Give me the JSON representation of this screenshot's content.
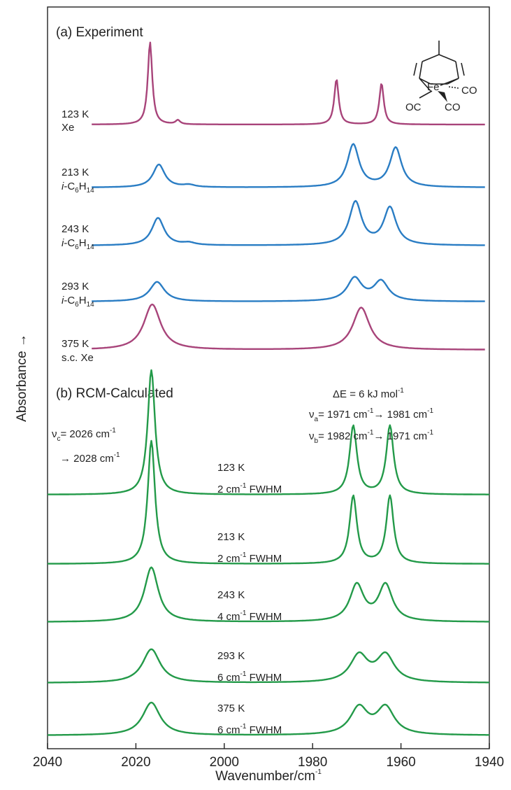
{
  "chart_data": {
    "type": "line",
    "xlabel": "Wavenumber/cm-1",
    "ylabel": "Absorbance →",
    "xlim": [
      2040,
      1940
    ],
    "x_ticks": [
      2040,
      2020,
      2000,
      1980,
      1960,
      1940
    ],
    "x_reversed": true,
    "colors": {
      "xe": "#a8447a",
      "hexane": "#2a7dc4",
      "calc": "#239a49"
    },
    "panels": [
      {
        "label": "(a) Experiment",
        "series": [
          {
            "temperature": "123 K",
            "medium": "Xe",
            "color_key": "xe",
            "width": 0.6,
            "peaks": [
              {
                "center": 2016.8,
                "height": 1.0
              },
              {
                "center": 2010.5,
                "height": 0.05
              },
              {
                "center": 1974.6,
                "height": 0.55
              },
              {
                "center": 1964.4,
                "height": 0.5
              }
            ]
          },
          {
            "temperature": "213 K",
            "medium": "i-C6H14",
            "color_key": "hexane",
            "width": 1.6,
            "peaks": [
              {
                "center": 2014.8,
                "height": 0.42
              },
              {
                "center": 2008.0,
                "height": 0.04
              },
              {
                "center": 1970.8,
                "height": 0.78
              },
              {
                "center": 1961.2,
                "height": 0.72
              }
            ]
          },
          {
            "temperature": "243 K",
            "medium": "i-C6H14",
            "color_key": "hexane",
            "width": 1.7,
            "peaks": [
              {
                "center": 2015.0,
                "height": 0.48
              },
              {
                "center": 2008.0,
                "height": 0.04
              },
              {
                "center": 1970.3,
                "height": 0.75
              },
              {
                "center": 1962.5,
                "height": 0.65
              }
            ]
          },
          {
            "temperature": "293 K",
            "medium": "i-C6H14",
            "color_key": "hexane",
            "width": 2.0,
            "peaks": [
              {
                "center": 2015.2,
                "height": 0.36
              },
              {
                "center": 1970.5,
                "height": 0.42
              },
              {
                "center": 1964.5,
                "height": 0.36
              }
            ]
          },
          {
            "temperature": "375 K",
            "medium": "s.c. Xe",
            "color_key": "xe",
            "width": 2.3,
            "peaks": [
              {
                "center": 2016.3,
                "height": 0.72
              },
              {
                "center": 1969.0,
                "height": 0.67
              }
            ]
          }
        ]
      },
      {
        "label": "(b) RCM-Calculated",
        "annotations": {
          "energy": "ΔE = 6 kJ mol-1",
          "nu_a": "νa= 1971 cm-1→ 1981 cm-1",
          "nu_b": "νb= 1982 cm-1→ 1971 cm-1",
          "nu_c_1": "νc= 2026 cm-1",
          "nu_c_2": "→ 2028 cm-1"
        },
        "series": [
          {
            "temperature": "123 K",
            "fwhm": "2 cm-1 FWHM",
            "color_key": "calc",
            "width": 1.0,
            "peaks": [
              {
                "center": 2016.5,
                "height": 1.0
              },
              {
                "center": 1970.8,
                "height": 0.55
              },
              {
                "center": 1962.5,
                "height": 0.55
              }
            ]
          },
          {
            "temperature": "213 K",
            "fwhm": "2 cm-1 FWHM",
            "color_key": "calc",
            "width": 1.0,
            "peaks": [
              {
                "center": 2016.5,
                "height": 1.0
              },
              {
                "center": 1970.8,
                "height": 0.55
              },
              {
                "center": 1962.5,
                "height": 0.55
              }
            ]
          },
          {
            "temperature": "243 K",
            "fwhm": "4 cm-1 FWHM",
            "color_key": "calc",
            "width": 1.9,
            "peaks": [
              {
                "center": 2016.5,
                "height": 0.6
              },
              {
                "center": 1970.0,
                "height": 0.4
              },
              {
                "center": 1963.5,
                "height": 0.4
              }
            ]
          },
          {
            "temperature": "293 K",
            "fwhm": "6 cm-1 FWHM",
            "color_key": "calc",
            "width": 2.4,
            "peaks": [
              {
                "center": 2016.5,
                "height": 0.4
              },
              {
                "center": 1969.5,
                "height": 0.32
              },
              {
                "center": 1963.5,
                "height": 0.32
              }
            ]
          },
          {
            "temperature": "375 K",
            "fwhm": "6 cm-1 FWHM",
            "color_key": "calc",
            "width": 2.4,
            "peaks": [
              {
                "center": 2016.5,
                "height": 0.4
              },
              {
                "center": 1969.5,
                "height": 0.33
              },
              {
                "center": 1963.5,
                "height": 0.33
              }
            ]
          }
        ]
      }
    ],
    "structure_labels": {
      "metal": "Fe",
      "co_right": "CO",
      "co_left": "OC",
      "co_bottom": "CO"
    }
  }
}
